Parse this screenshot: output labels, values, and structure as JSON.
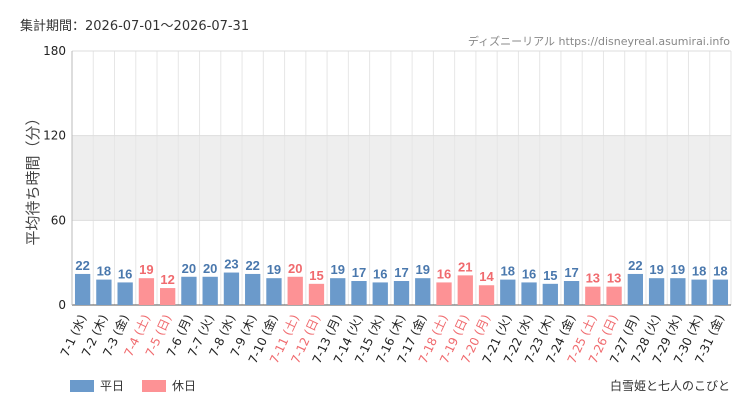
{
  "header": {
    "period": "集計期間：2026-07-01〜2026-07-31",
    "site": "ディズニーリアル https://disneyreal.asumirai.info"
  },
  "footer": {
    "attraction": "白雪姫と七人のこびと"
  },
  "colors": {
    "weekday": "#6b9acb",
    "holiday": "#fd9295",
    "weekday_text": "#4a78ad",
    "holiday_text": "#f06a6e",
    "band": "#eeeeee"
  },
  "chart_data": {
    "type": "bar",
    "ylabel": "平均待ち時間（分）",
    "ylim": [
      0,
      180
    ],
    "yticks": [
      "0",
      "60",
      "120",
      "180"
    ],
    "grid": true,
    "legend_position": "bottom-left",
    "legend": [
      "平日",
      "休日"
    ],
    "categories": [
      "7-1 (水)",
      "7-2 (木)",
      "7-3 (金)",
      "7-4 (土)",
      "7-5 (日)",
      "7-6 (月)",
      "7-7 (火)",
      "7-8 (水)",
      "7-9 (木)",
      "7-10 (金)",
      "7-11 (土)",
      "7-12 (日)",
      "7-13 (月)",
      "7-14 (火)",
      "7-15 (水)",
      "7-16 (木)",
      "7-17 (金)",
      "7-18 (土)",
      "7-19 (日)",
      "7-20 (月)",
      "7-21 (火)",
      "7-22 (水)",
      "7-23 (木)",
      "7-24 (金)",
      "7-25 (土)",
      "7-26 (日)",
      "7-27 (月)",
      "7-28 (火)",
      "7-29 (水)",
      "7-30 (木)",
      "7-31 (金)"
    ],
    "values": [
      22,
      18,
      16,
      19,
      12,
      20,
      20,
      23,
      22,
      19,
      20,
      15,
      19,
      17,
      16,
      17,
      19,
      16,
      21,
      14,
      18,
      16,
      15,
      17,
      13,
      13,
      22,
      19,
      19,
      18,
      18
    ],
    "day_type": [
      "平日",
      "平日",
      "平日",
      "休日",
      "休日",
      "平日",
      "平日",
      "平日",
      "平日",
      "平日",
      "休日",
      "休日",
      "平日",
      "平日",
      "平日",
      "平日",
      "平日",
      "休日",
      "休日",
      "休日",
      "平日",
      "平日",
      "平日",
      "平日",
      "休日",
      "休日",
      "平日",
      "平日",
      "平日",
      "平日",
      "平日"
    ]
  }
}
